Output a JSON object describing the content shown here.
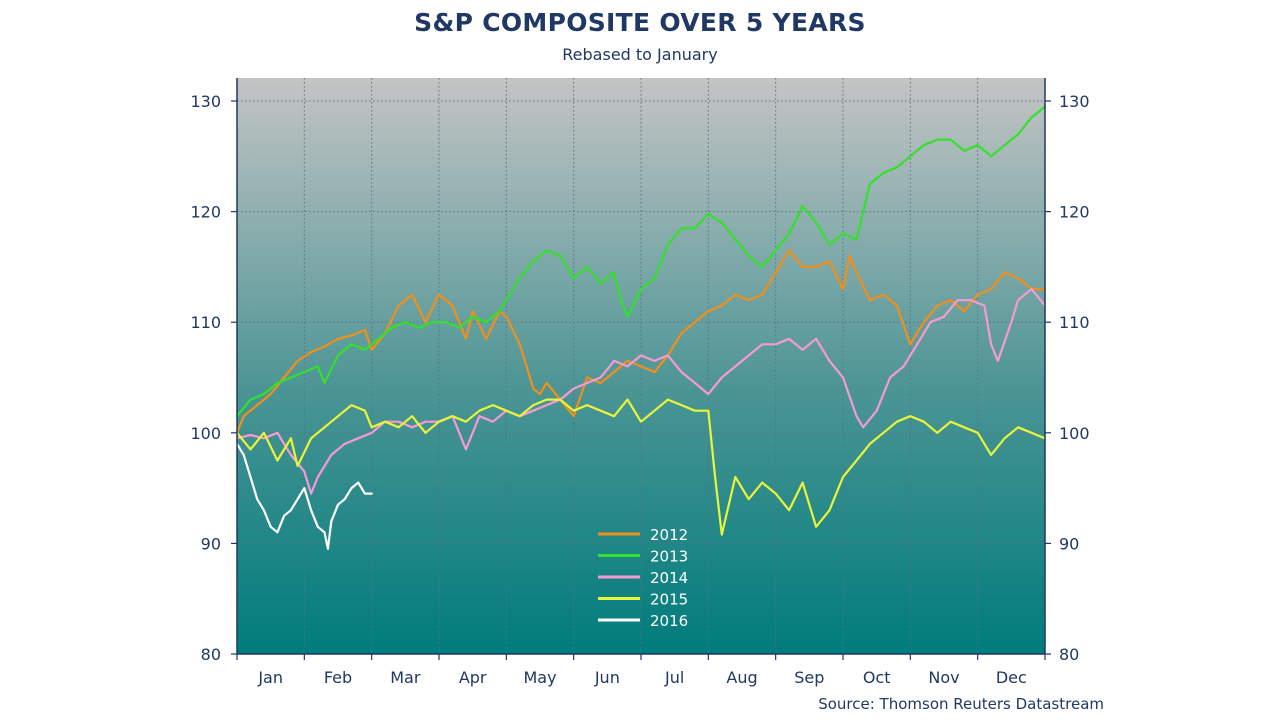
{
  "chart_data": {
    "type": "line",
    "title": "S&P COMPOSITE OVER 5 YEARS",
    "subtitle": "Rebased to January",
    "source": "Source: Thomson Reuters Datastream",
    "xlabel": "",
    "ylabel": "",
    "x_domain": [
      0,
      12
    ],
    "ylim": [
      80,
      130
    ],
    "y_ticks": [
      80,
      90,
      100,
      110,
      120,
      130
    ],
    "months": [
      "Jan",
      "Feb",
      "Mar",
      "Apr",
      "May",
      "Jun",
      "Jul",
      "Aug",
      "Sep",
      "Oct",
      "Nov",
      "Dec"
    ],
    "grid": true,
    "legend_position": "bottom-center",
    "series": [
      {
        "name": "2012",
        "color": "#f0901a",
        "points": [
          [
            0,
            100
          ],
          [
            0.1,
            101.5
          ],
          [
            0.3,
            102.5
          ],
          [
            0.5,
            103.5
          ],
          [
            0.7,
            105
          ],
          [
            0.9,
            106.5
          ],
          [
            1.1,
            107.3
          ],
          [
            1.3,
            107.8
          ],
          [
            1.5,
            108.5
          ],
          [
            1.7,
            108.8
          ],
          [
            1.9,
            109.3
          ],
          [
            2.0,
            107.5
          ],
          [
            2.2,
            109
          ],
          [
            2.4,
            111.5
          ],
          [
            2.6,
            112.5
          ],
          [
            2.8,
            110
          ],
          [
            3.0,
            112.5
          ],
          [
            3.2,
            111.5
          ],
          [
            3.4,
            108.5
          ],
          [
            3.5,
            111
          ],
          [
            3.7,
            108.5
          ],
          [
            3.9,
            111
          ],
          [
            4.0,
            110.5
          ],
          [
            4.2,
            108
          ],
          [
            4.4,
            104
          ],
          [
            4.5,
            103.5
          ],
          [
            4.6,
            104.5
          ],
          [
            4.8,
            103
          ],
          [
            5.0,
            101.5
          ],
          [
            5.2,
            105
          ],
          [
            5.4,
            104.5
          ],
          [
            5.6,
            105.5
          ],
          [
            5.8,
            106.5
          ],
          [
            6.0,
            106
          ],
          [
            6.2,
            105.5
          ],
          [
            6.4,
            107
          ],
          [
            6.6,
            109
          ],
          [
            6.8,
            110
          ],
          [
            7.0,
            111
          ],
          [
            7.2,
            111.5
          ],
          [
            7.4,
            112.5
          ],
          [
            7.6,
            112
          ],
          [
            7.8,
            112.5
          ],
          [
            8.0,
            114.5
          ],
          [
            8.2,
            116.5
          ],
          [
            8.4,
            115
          ],
          [
            8.6,
            115
          ],
          [
            8.8,
            115.5
          ],
          [
            9.0,
            113
          ],
          [
            9.1,
            116
          ],
          [
            9.2,
            114.5
          ],
          [
            9.4,
            112
          ],
          [
            9.6,
            112.5
          ],
          [
            9.8,
            111.5
          ],
          [
            10.0,
            108
          ],
          [
            10.2,
            110
          ],
          [
            10.4,
            111.5
          ],
          [
            10.6,
            112
          ],
          [
            10.8,
            111
          ],
          [
            11.0,
            112.5
          ],
          [
            11.2,
            113
          ],
          [
            11.4,
            114.5
          ],
          [
            11.6,
            114
          ],
          [
            11.8,
            113
          ],
          [
            12.0,
            113
          ]
        ]
      },
      {
        "name": "2013",
        "color": "#33e02b",
        "points": [
          [
            0,
            101.5
          ],
          [
            0.2,
            103
          ],
          [
            0.4,
            103.5
          ],
          [
            0.6,
            104.5
          ],
          [
            0.8,
            105
          ],
          [
            1.0,
            105.5
          ],
          [
            1.2,
            106
          ],
          [
            1.3,
            104.5
          ],
          [
            1.5,
            107
          ],
          [
            1.7,
            108
          ],
          [
            1.9,
            107.5
          ],
          [
            2.1,
            108.5
          ],
          [
            2.3,
            109.5
          ],
          [
            2.5,
            110
          ],
          [
            2.7,
            109.5
          ],
          [
            2.9,
            110
          ],
          [
            3.1,
            110
          ],
          [
            3.3,
            109.5
          ],
          [
            3.5,
            110.5
          ],
          [
            3.7,
            110
          ],
          [
            3.9,
            111
          ],
          [
            4.0,
            112
          ],
          [
            4.2,
            114
          ],
          [
            4.4,
            115.5
          ],
          [
            4.6,
            116.5
          ],
          [
            4.8,
            116
          ],
          [
            5.0,
            114
          ],
          [
            5.2,
            115
          ],
          [
            5.4,
            113.5
          ],
          [
            5.6,
            114.5
          ],
          [
            5.7,
            112
          ],
          [
            5.8,
            110.5
          ],
          [
            6.0,
            113
          ],
          [
            6.2,
            114
          ],
          [
            6.4,
            117
          ],
          [
            6.6,
            118.5
          ],
          [
            6.8,
            118.5
          ],
          [
            7.0,
            119.8
          ],
          [
            7.2,
            119
          ],
          [
            7.4,
            117.5
          ],
          [
            7.6,
            116
          ],
          [
            7.8,
            115
          ],
          [
            8.0,
            116.5
          ],
          [
            8.2,
            118
          ],
          [
            8.4,
            120.5
          ],
          [
            8.6,
            119
          ],
          [
            8.8,
            117
          ],
          [
            9.0,
            118
          ],
          [
            9.2,
            117.5
          ],
          [
            9.4,
            122.5
          ],
          [
            9.6,
            123.5
          ],
          [
            9.8,
            124
          ],
          [
            10.0,
            125
          ],
          [
            10.2,
            126
          ],
          [
            10.4,
            126.5
          ],
          [
            10.6,
            126.5
          ],
          [
            10.8,
            125.5
          ],
          [
            11.0,
            126
          ],
          [
            11.2,
            125
          ],
          [
            11.4,
            126
          ],
          [
            11.6,
            127
          ],
          [
            11.8,
            128.5
          ],
          [
            12.0,
            129.5
          ]
        ]
      },
      {
        "name": "2014",
        "color": "#f59ad3",
        "points": [
          [
            0,
            99.5
          ],
          [
            0.2,
            99.8
          ],
          [
            0.4,
            99.5
          ],
          [
            0.6,
            100
          ],
          [
            0.8,
            98
          ],
          [
            1.0,
            96.5
          ],
          [
            1.1,
            94.5
          ],
          [
            1.2,
            96
          ],
          [
            1.4,
            98
          ],
          [
            1.6,
            99
          ],
          [
            1.8,
            99.5
          ],
          [
            2.0,
            100
          ],
          [
            2.2,
            101
          ],
          [
            2.4,
            101
          ],
          [
            2.6,
            100.5
          ],
          [
            2.8,
            101
          ],
          [
            3.0,
            101
          ],
          [
            3.2,
            101.5
          ],
          [
            3.4,
            98.5
          ],
          [
            3.6,
            101.5
          ],
          [
            3.8,
            101
          ],
          [
            4.0,
            102
          ],
          [
            4.2,
            101.5
          ],
          [
            4.4,
            102
          ],
          [
            4.6,
            102.5
          ],
          [
            4.8,
            103
          ],
          [
            5.0,
            104
          ],
          [
            5.2,
            104.5
          ],
          [
            5.4,
            105
          ],
          [
            5.6,
            106.5
          ],
          [
            5.8,
            106
          ],
          [
            6.0,
            107
          ],
          [
            6.2,
            106.5
          ],
          [
            6.4,
            107
          ],
          [
            6.6,
            105.5
          ],
          [
            6.8,
            104.5
          ],
          [
            7.0,
            103.5
          ],
          [
            7.2,
            105
          ],
          [
            7.4,
            106
          ],
          [
            7.6,
            107
          ],
          [
            7.8,
            108
          ],
          [
            8.0,
            108
          ],
          [
            8.2,
            108.5
          ],
          [
            8.4,
            107.5
          ],
          [
            8.6,
            108.5
          ],
          [
            8.8,
            106.5
          ],
          [
            9.0,
            105
          ],
          [
            9.2,
            101.5
          ],
          [
            9.3,
            100.5
          ],
          [
            9.5,
            102
          ],
          [
            9.7,
            105
          ],
          [
            9.9,
            106
          ],
          [
            10.1,
            108
          ],
          [
            10.3,
            110
          ],
          [
            10.5,
            110.5
          ],
          [
            10.7,
            112
          ],
          [
            10.9,
            112
          ],
          [
            11.1,
            111.5
          ],
          [
            11.2,
            108
          ],
          [
            11.3,
            106.5
          ],
          [
            11.5,
            110
          ],
          [
            11.6,
            112
          ],
          [
            11.8,
            113
          ],
          [
            12.0,
            111.5
          ]
        ]
      },
      {
        "name": "2015",
        "color": "#e8f53a",
        "points": [
          [
            0,
            100
          ],
          [
            0.2,
            98.5
          ],
          [
            0.4,
            100
          ],
          [
            0.6,
            97.5
          ],
          [
            0.8,
            99.5
          ],
          [
            0.9,
            97
          ],
          [
            1.1,
            99.5
          ],
          [
            1.3,
            100.5
          ],
          [
            1.5,
            101.5
          ],
          [
            1.7,
            102.5
          ],
          [
            1.9,
            102
          ],
          [
            2.0,
            100.5
          ],
          [
            2.2,
            101
          ],
          [
            2.4,
            100.5
          ],
          [
            2.6,
            101.5
          ],
          [
            2.8,
            100
          ],
          [
            3.0,
            101
          ],
          [
            3.2,
            101.5
          ],
          [
            3.4,
            101
          ],
          [
            3.6,
            102
          ],
          [
            3.8,
            102.5
          ],
          [
            4.0,
            102
          ],
          [
            4.2,
            101.5
          ],
          [
            4.4,
            102.5
          ],
          [
            4.6,
            103
          ],
          [
            4.8,
            103
          ],
          [
            5.0,
            102
          ],
          [
            5.2,
            102.5
          ],
          [
            5.4,
            102
          ],
          [
            5.6,
            101.5
          ],
          [
            5.8,
            103
          ],
          [
            6.0,
            101
          ],
          [
            6.2,
            102
          ],
          [
            6.4,
            103
          ],
          [
            6.6,
            102.5
          ],
          [
            6.8,
            102
          ],
          [
            7.0,
            102
          ],
          [
            7.1,
            96
          ],
          [
            7.2,
            90.8
          ],
          [
            7.4,
            96
          ],
          [
            7.6,
            94
          ],
          [
            7.8,
            95.5
          ],
          [
            8.0,
            94.5
          ],
          [
            8.2,
            93
          ],
          [
            8.4,
            95.5
          ],
          [
            8.6,
            91.5
          ],
          [
            8.8,
            93
          ],
          [
            9.0,
            96
          ],
          [
            9.2,
            97.5
          ],
          [
            9.4,
            99
          ],
          [
            9.6,
            100
          ],
          [
            9.8,
            101
          ],
          [
            10.0,
            101.5
          ],
          [
            10.2,
            101
          ],
          [
            10.4,
            100
          ],
          [
            10.6,
            101
          ],
          [
            10.8,
            100.5
          ],
          [
            11.0,
            100
          ],
          [
            11.2,
            98
          ],
          [
            11.4,
            99.5
          ],
          [
            11.6,
            100.5
          ],
          [
            11.8,
            100
          ],
          [
            12.0,
            99.5
          ]
        ]
      },
      {
        "name": "2016",
        "color": "#ffffff",
        "points": [
          [
            0,
            99
          ],
          [
            0.1,
            98
          ],
          [
            0.2,
            96
          ],
          [
            0.3,
            94
          ],
          [
            0.4,
            93
          ],
          [
            0.5,
            91.5
          ],
          [
            0.6,
            91
          ],
          [
            0.7,
            92.5
          ],
          [
            0.8,
            93
          ],
          [
            0.9,
            94
          ],
          [
            1.0,
            95
          ],
          [
            1.1,
            93
          ],
          [
            1.2,
            91.5
          ],
          [
            1.3,
            91
          ],
          [
            1.35,
            89.5
          ],
          [
            1.4,
            92
          ],
          [
            1.5,
            93.5
          ],
          [
            1.6,
            94
          ],
          [
            1.7,
            95
          ],
          [
            1.8,
            95.5
          ],
          [
            1.9,
            94.5
          ],
          [
            2.0,
            94.5
          ]
        ]
      }
    ]
  }
}
